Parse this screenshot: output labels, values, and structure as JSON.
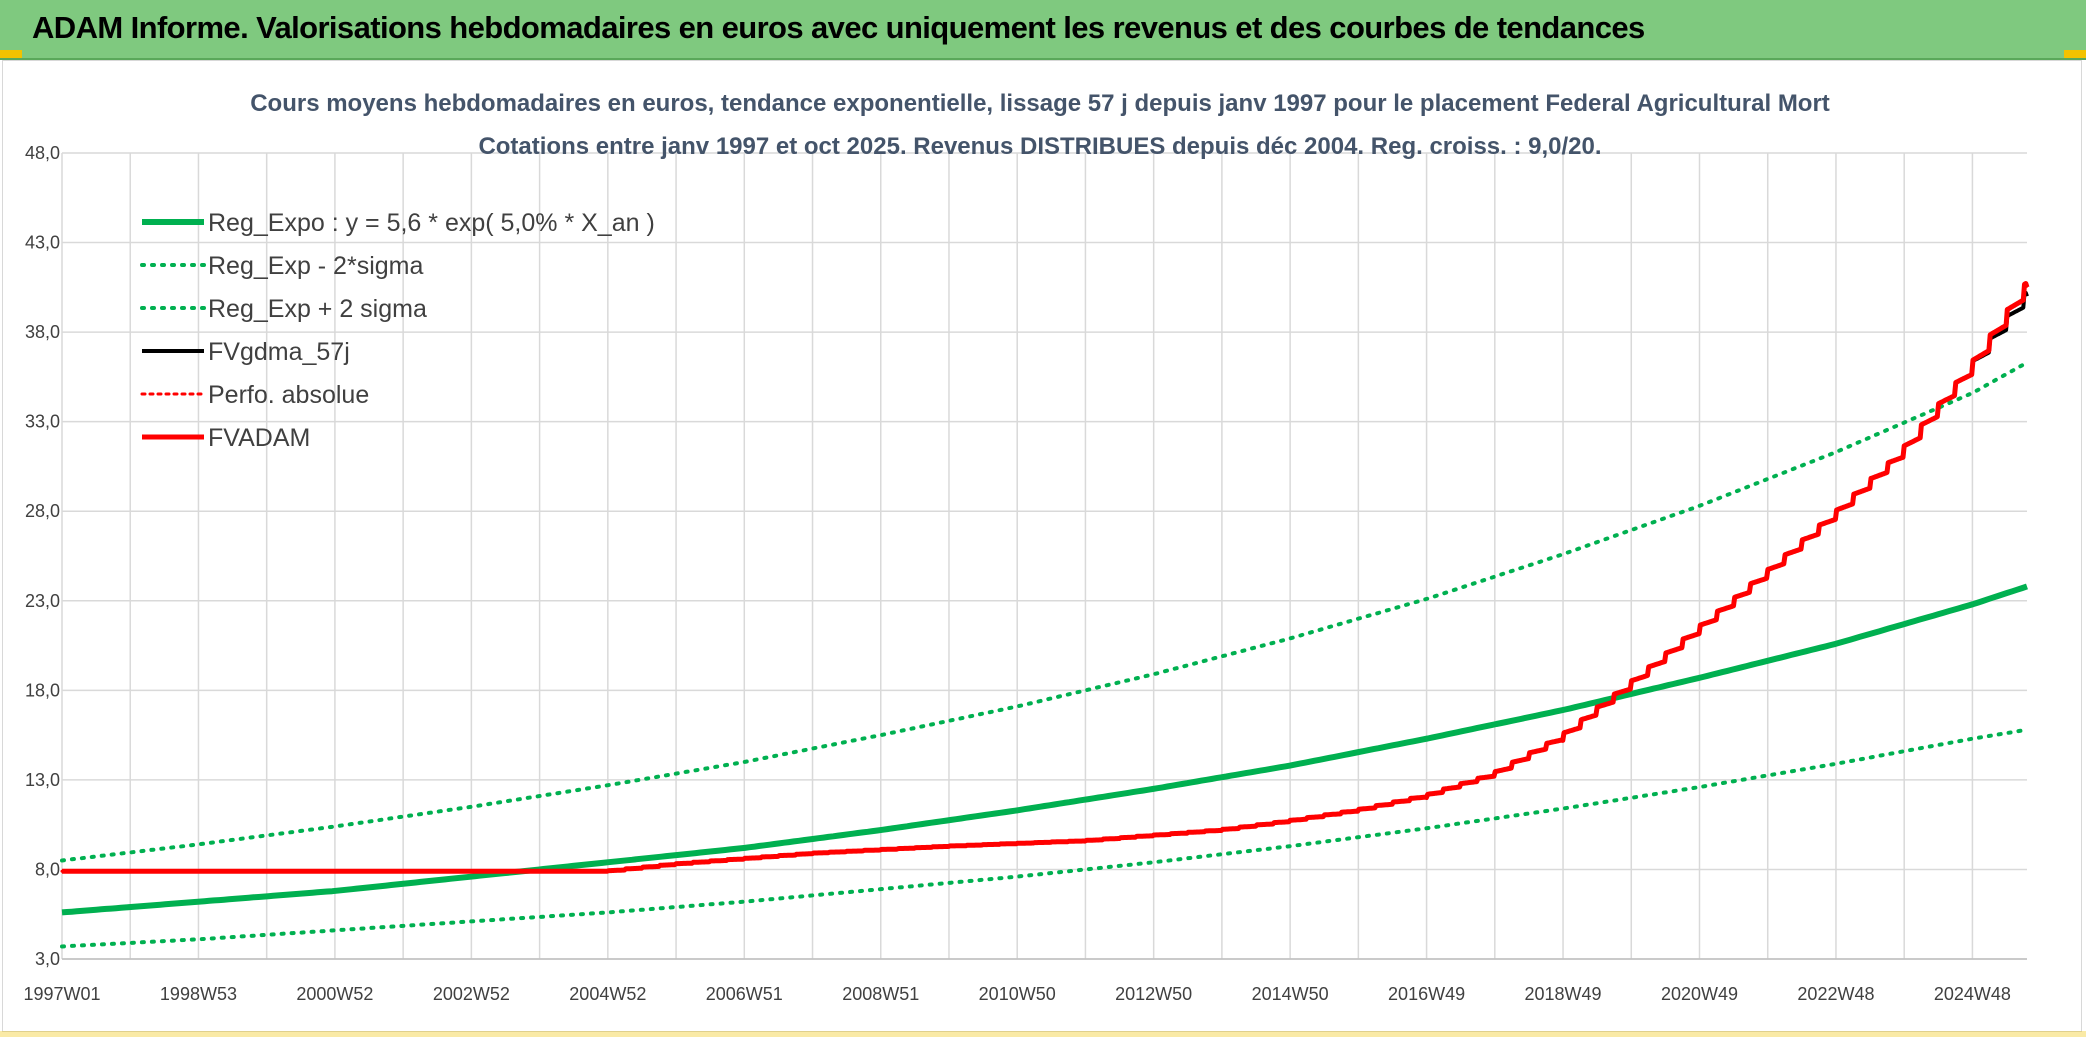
{
  "header": {
    "title": "ADAM Informe. Valorisations hebdomadaires en euros avec uniquement les revenus et des courbes de tendances"
  },
  "colors": {
    "banner": "#7fc97f",
    "green": "#00b050",
    "red": "#ff0000",
    "black": "#000000",
    "grid": "#d9d9d9"
  },
  "chart_data": {
    "type": "line",
    "title": "Cours moyens hebdomadaires en euros, tendance exponentielle, lissage 57 j depuis janv 1997 pour le placement Federal Agricultural Mort",
    "subtitle": "Cotations entre janv 1997 et oct 2025. Revenus DISTRIBUES depuis déc 2004. Reg. croiss. : 9,0/20.",
    "xlabel": "",
    "ylabel": "",
    "xlim": [
      1997.0,
      2025.8
    ],
    "ylim": [
      3.0,
      48.0
    ],
    "y_ticks": [
      "3,0",
      "8,0",
      "13,0",
      "18,0",
      "23,0",
      "28,0",
      "33,0",
      "38,0",
      "43,0",
      "48,0"
    ],
    "y_tick_values": [
      3,
      8,
      13,
      18,
      23,
      28,
      33,
      38,
      43,
      48
    ],
    "x_ticks": [
      "1997W01",
      "1998W53",
      "2000W52",
      "2002W52",
      "2004W52",
      "2006W51",
      "2008W51",
      "2010W50",
      "2012W50",
      "2014W50",
      "2016W49",
      "2018W49",
      "2020W49",
      "2022W48",
      "2024W48"
    ],
    "x_tick_values": [
      1997.0,
      1999.0,
      2001.0,
      2003.0,
      2005.0,
      2007.0,
      2009.0,
      2011.0,
      2013.0,
      2015.0,
      2017.0,
      2019.0,
      2021.0,
      2023.0,
      2025.0
    ],
    "legend": [
      {
        "name": "Reg_Expo : y = 5,6 * exp( 5,0% *  X_an )",
        "color": "#00b050",
        "style": "solid",
        "width": 6
      },
      {
        "name": "Reg_Exp - 2*sigma",
        "color": "#00b050",
        "style": "dotted",
        "width": 4
      },
      {
        "name": "Reg_Exp + 2 sigma",
        "color": "#00b050",
        "style": "dotted",
        "width": 4
      },
      {
        "name": "FVgdma_57j",
        "color": "#000000",
        "style": "solid",
        "width": 4
      },
      {
        "name": "Perfo. absolue",
        "color": "#ff0000",
        "style": "dotted",
        "width": 3
      },
      {
        "name": "FVADAM",
        "color": "#ff0000",
        "style": "solid",
        "width": 5
      }
    ],
    "series": [
      {
        "name": "Reg_Expo",
        "x": [
          1997,
          1999,
          2001,
          2003,
          2005,
          2007,
          2009,
          2011,
          2013,
          2015,
          2017,
          2019,
          2021,
          2023,
          2025,
          2025.8
        ],
        "values": [
          5.6,
          6.2,
          6.8,
          7.6,
          8.4,
          9.2,
          10.2,
          11.3,
          12.5,
          13.8,
          15.3,
          16.9,
          18.7,
          20.6,
          22.8,
          23.8
        ]
      },
      {
        "name": "Reg_Exp - 2*sigma",
        "x": [
          1997,
          1999,
          2001,
          2003,
          2005,
          2007,
          2009,
          2011,
          2013,
          2015,
          2017,
          2019,
          2021,
          2023,
          2025,
          2025.8
        ],
        "values": [
          3.7,
          4.1,
          4.6,
          5.1,
          5.6,
          6.2,
          6.9,
          7.6,
          8.4,
          9.3,
          10.3,
          11.4,
          12.6,
          13.9,
          15.3,
          15.8
        ]
      },
      {
        "name": "Reg_Exp + 2 sigma",
        "x": [
          1997,
          1999,
          2001,
          2003,
          2005,
          2007,
          2009,
          2011,
          2013,
          2015,
          2017,
          2019,
          2021,
          2023,
          2025,
          2025.8
        ],
        "values": [
          8.5,
          9.4,
          10.4,
          11.5,
          12.7,
          14.0,
          15.5,
          17.1,
          18.9,
          20.9,
          23.1,
          25.6,
          28.3,
          31.3,
          34.6,
          36.3
        ]
      },
      {
        "name": "FVgdma_57j",
        "x": [
          1997,
          2000,
          2003,
          2005,
          2006,
          2008,
          2010,
          2012,
          2014,
          2015,
          2016,
          2017,
          2018,
          2019,
          2020,
          2021,
          2022,
          2023,
          2024,
          2025,
          2025.8
        ],
        "values": [
          7.9,
          7.9,
          7.9,
          7.9,
          8.3,
          8.9,
          9.3,
          9.6,
          10.2,
          10.7,
          11.3,
          12.1,
          13.3,
          15.4,
          18.3,
          21.4,
          24.5,
          27.8,
          31.3,
          36.0,
          40.0
        ]
      },
      {
        "name": "Perfo. absolue",
        "x": [
          1997,
          2000,
          2003,
          2005,
          2006,
          2008,
          2010,
          2012,
          2014,
          2015,
          2016,
          2017,
          2018,
          2019,
          2020,
          2021,
          2022,
          2023,
          2024,
          2025,
          2025.8
        ],
        "values": [
          7.9,
          7.9,
          7.9,
          7.9,
          8.3,
          8.9,
          9.3,
          9.6,
          10.2,
          10.7,
          11.3,
          12.1,
          13.3,
          15.4,
          18.3,
          21.4,
          24.5,
          27.8,
          31.3,
          36.0,
          40.5
        ]
      },
      {
        "name": "FVADAM",
        "x": [
          1997,
          2000,
          2003,
          2005,
          2006,
          2008,
          2010,
          2012,
          2014,
          2015,
          2016,
          2017,
          2018,
          2019,
          2020,
          2021,
          2022,
          2023,
          2024,
          2025,
          2025.8
        ],
        "values": [
          7.9,
          7.9,
          7.9,
          7.9,
          8.3,
          8.9,
          9.3,
          9.6,
          10.2,
          10.7,
          11.3,
          12.1,
          13.3,
          15.4,
          18.3,
          21.4,
          24.5,
          27.8,
          31.3,
          36.0,
          40.5
        ]
      }
    ]
  }
}
